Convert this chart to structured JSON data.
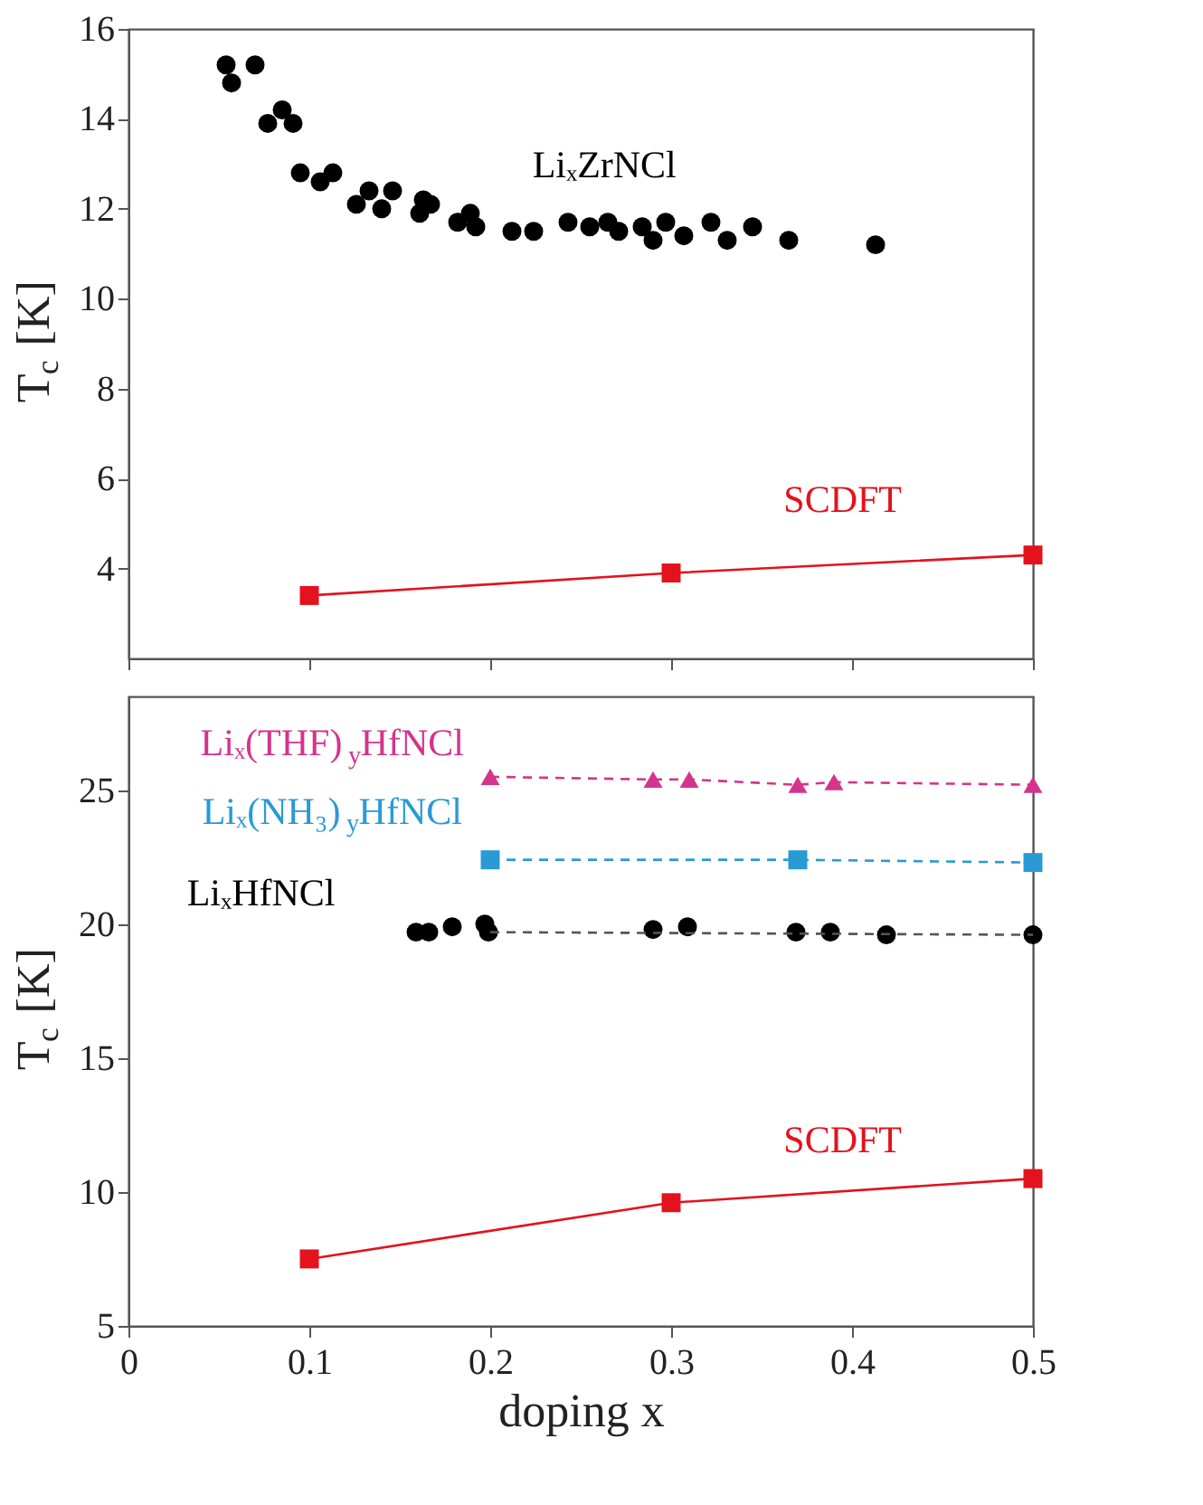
{
  "chart_data": [
    {
      "type": "scatter",
      "ylabel": "T$_{c}$ [K]",
      "xlim": [
        0,
        0.5
      ],
      "xticks": [
        0,
        0.1,
        0.2,
        0.3,
        0.4,
        0.5
      ],
      "ylim": [
        2,
        16
      ],
      "yticks": [
        4,
        6,
        8,
        10,
        12,
        14,
        16
      ],
      "tick_labels": "y",
      "series": [
        {
          "name": "LiₓZrNCl",
          "marker": "circle",
          "color": "#000000",
          "x": [
            0.054,
            0.057,
            0.07,
            0.077,
            0.085,
            0.091,
            0.095,
            0.106,
            0.113,
            0.126,
            0.133,
            0.14,
            0.146,
            0.161,
            0.163,
            0.167,
            0.182,
            0.189,
            0.192,
            0.212,
            0.224,
            0.243,
            0.255,
            0.265,
            0.271,
            0.284,
            0.29,
            0.297,
            0.307,
            0.322,
            0.331,
            0.345,
            0.365,
            0.413
          ],
          "values": [
            15.2,
            14.8,
            15.2,
            13.9,
            14.2,
            13.9,
            12.8,
            12.6,
            12.8,
            12.1,
            12.4,
            12.0,
            12.4,
            11.9,
            12.2,
            12.1,
            11.7,
            11.9,
            11.6,
            11.5,
            11.5,
            11.7,
            11.6,
            11.7,
            11.5,
            11.6,
            11.3,
            11.7,
            11.4,
            11.7,
            11.3,
            11.6,
            11.3,
            11.2
          ]
        },
        {
          "name": "SCDFT",
          "type": "line",
          "marker": "square",
          "line_style": "solid",
          "color": "#e3121d",
          "x": [
            0.1,
            0.3,
            0.5
          ],
          "values": [
            3.4,
            3.9,
            4.3
          ]
        }
      ]
    },
    {
      "type": "scatter",
      "xlabel": "doping x",
      "ylabel": "T$_{c}$ [K]",
      "xlim": [
        0,
        0.5
      ],
      "xticks": [
        0,
        0.1,
        0.2,
        0.3,
        0.4,
        0.5
      ],
      "ylim": [
        5,
        28.5
      ],
      "yticks": [
        5,
        10,
        15,
        20,
        25
      ],
      "series": [
        {
          "name": "Liₓ(THF)$_{y}$HfNCl",
          "type": "line",
          "marker": "triangle",
          "line_style": "dashed",
          "color": "#d4348c",
          "x": [
            0.2,
            0.29,
            0.31,
            0.37,
            0.39,
            0.5
          ],
          "values": [
            25.5,
            25.4,
            25.4,
            25.2,
            25.3,
            25.2
          ]
        },
        {
          "name": "Liₓ(NH₃)$_{y}$HfNCl",
          "type": "line",
          "marker": "square",
          "line_style": "dashed",
          "color": "#2a9ad6",
          "x": [
            0.2,
            0.37,
            0.5
          ],
          "values": [
            22.4,
            22.4,
            22.3
          ]
        },
        {
          "name": "LiₓHfNCl",
          "marker": "circle",
          "color": "#000000",
          "x": [
            0.159,
            0.166,
            0.179,
            0.197,
            0.199,
            0.29,
            0.309,
            0.369,
            0.388,
            0.419,
            0.5
          ],
          "values": [
            19.7,
            19.7,
            19.9,
            20.0,
            19.7,
            19.8,
            19.9,
            19.7,
            19.7,
            19.6,
            19.6
          ]
        },
        {
          "type": "line",
          "marker": "none",
          "line_style": "dashed",
          "color": "#555555",
          "x": [
            0.2,
            0.5
          ],
          "values": [
            19.7,
            19.6
          ]
        },
        {
          "name": "SCDFT",
          "type": "line",
          "marker": "square",
          "line_style": "solid",
          "color": "#e3121d",
          "x": [
            0.1,
            0.3,
            0.5
          ],
          "values": [
            7.5,
            9.6,
            10.5
          ]
        }
      ]
    }
  ]
}
